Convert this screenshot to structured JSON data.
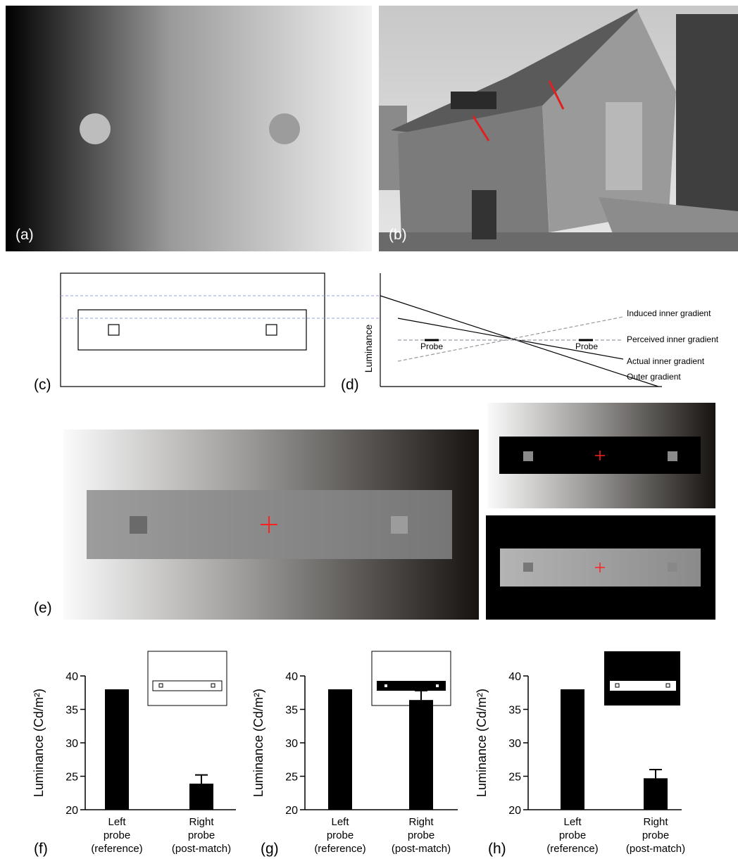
{
  "panels": {
    "a": "(a)",
    "b": "(b)",
    "c": "(c)",
    "d": "(d)",
    "e": "(e)",
    "f": "(f)",
    "g": "(g)",
    "h": "(h)"
  },
  "diagram_d": {
    "ylabel": "Luminance",
    "probes": [
      "Probe",
      "Probe"
    ],
    "lines": [
      "Induced inner gradient",
      "Perceived inner gradient",
      "Actual inner gradient",
      "Outer gradient"
    ]
  },
  "chart_data": [
    {
      "type": "bar",
      "ylabel": "Luminance (Cd/m²)",
      "categories": [
        "Left probe (reference)",
        "Right probe (post-match)"
      ],
      "values": [
        38,
        23.9
      ],
      "errors": [
        null,
        1.3
      ],
      "color": "#000000",
      "ylim": [
        20,
        40
      ],
      "yticks": [
        20,
        25,
        30,
        35,
        40
      ]
    },
    {
      "type": "bar",
      "ylabel": "Luminance (Cd/m²)",
      "categories": [
        "Left probe (reference)",
        "Right probe (post-match)"
      ],
      "values": [
        38,
        36.4
      ],
      "errors": [
        null,
        1.4
      ],
      "color": "#000000",
      "ylim": [
        20,
        40
      ],
      "yticks": [
        20,
        25,
        30,
        35,
        40
      ]
    },
    {
      "type": "bar",
      "ylabel": "Luminance (Cd/m²)",
      "categories": [
        "Left probe (reference)",
        "Right probe (post-match)"
      ],
      "values": [
        38,
        24.7
      ],
      "errors": [
        null,
        1.3
      ],
      "color": "#000000",
      "ylim": [
        20,
        40
      ],
      "yticks": [
        20,
        25,
        30,
        35,
        40
      ]
    }
  ]
}
